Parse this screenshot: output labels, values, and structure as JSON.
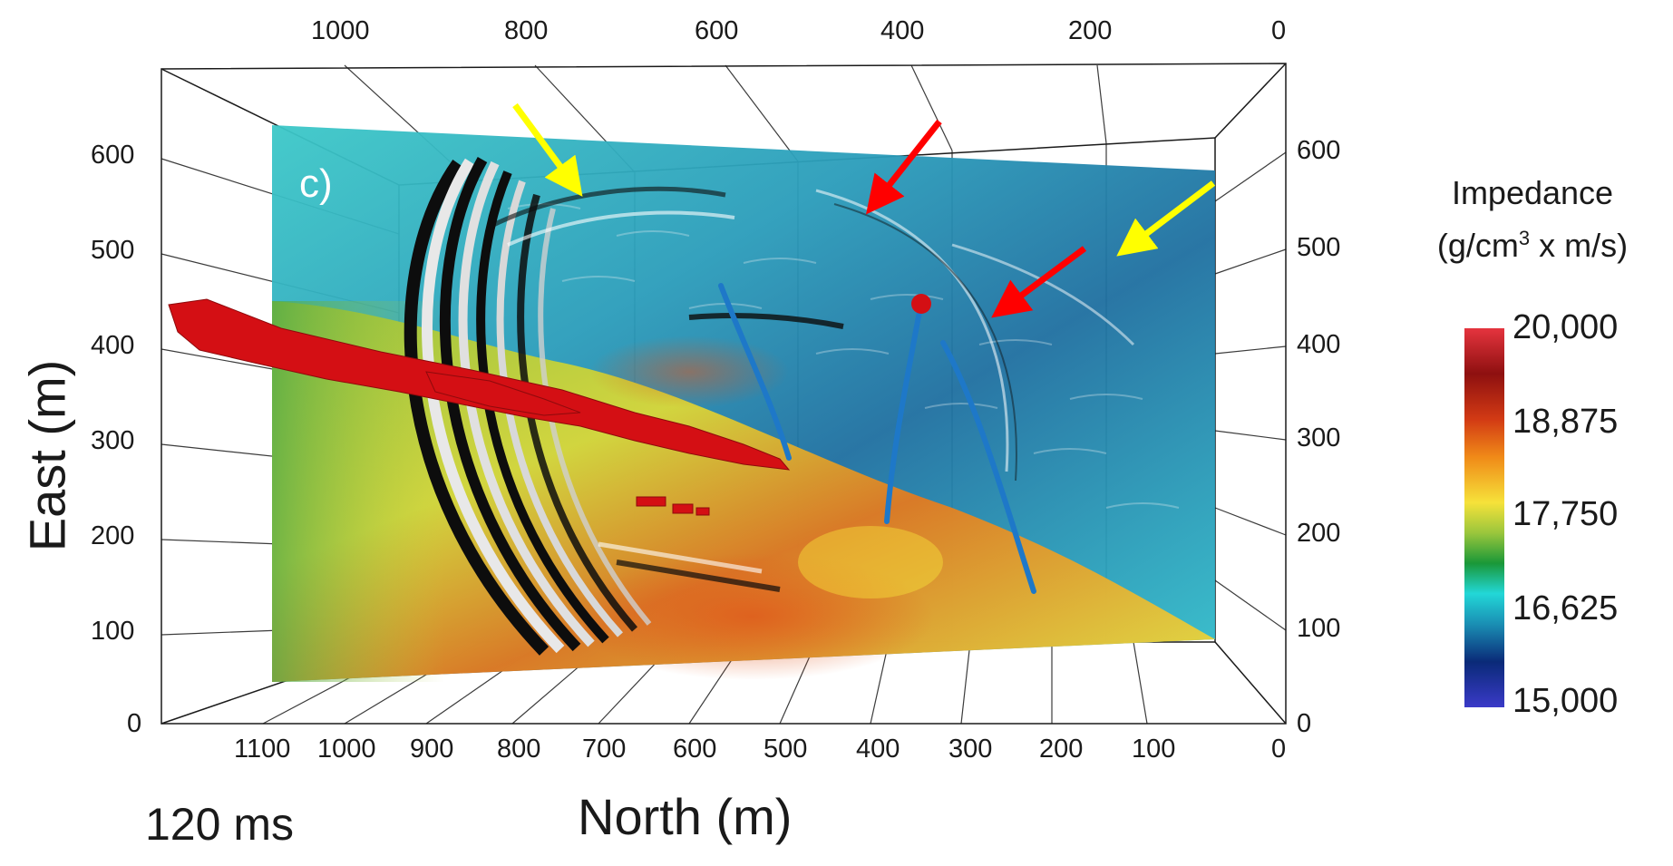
{
  "panel_label": "c)",
  "time_label": "120 ms",
  "x_axis_title": "North (m)",
  "y_axis_title": "East (m)",
  "top_ticks": [
    "1000",
    "800",
    "600",
    "400",
    "200",
    "0"
  ],
  "bottom_ticks": [
    "1100",
    "1000",
    "900",
    "800",
    "700",
    "600",
    "500",
    "400",
    "300",
    "200",
    "100",
    "0"
  ],
  "left_ticks": [
    "600",
    "500",
    "400",
    "300",
    "200",
    "100",
    "0"
  ],
  "right_ticks": [
    "600",
    "500",
    "400",
    "300",
    "200",
    "100",
    "0"
  ],
  "colorbar": {
    "title_line1": "Impedance",
    "title_units_pre": "(g/cm",
    "title_units_sup": "3",
    "title_units_post": " x m/s)",
    "ticks": [
      "20,000",
      "18,875",
      "17,750",
      "16,625",
      "15,000"
    ],
    "range": [
      15000,
      20000
    ]
  },
  "annotations": [
    {
      "name": "yellow-arrow-left",
      "color": "#ffff00"
    },
    {
      "name": "red-arrow-top",
      "color": "#ff0000"
    },
    {
      "name": "red-arrow-right",
      "color": "#ff0000"
    },
    {
      "name": "yellow-arrow-right",
      "color": "#ffff00"
    }
  ],
  "colors": {
    "red_body": "#d40f14",
    "well_paths": "#1e78c8",
    "grid": "#1a1a1a"
  }
}
